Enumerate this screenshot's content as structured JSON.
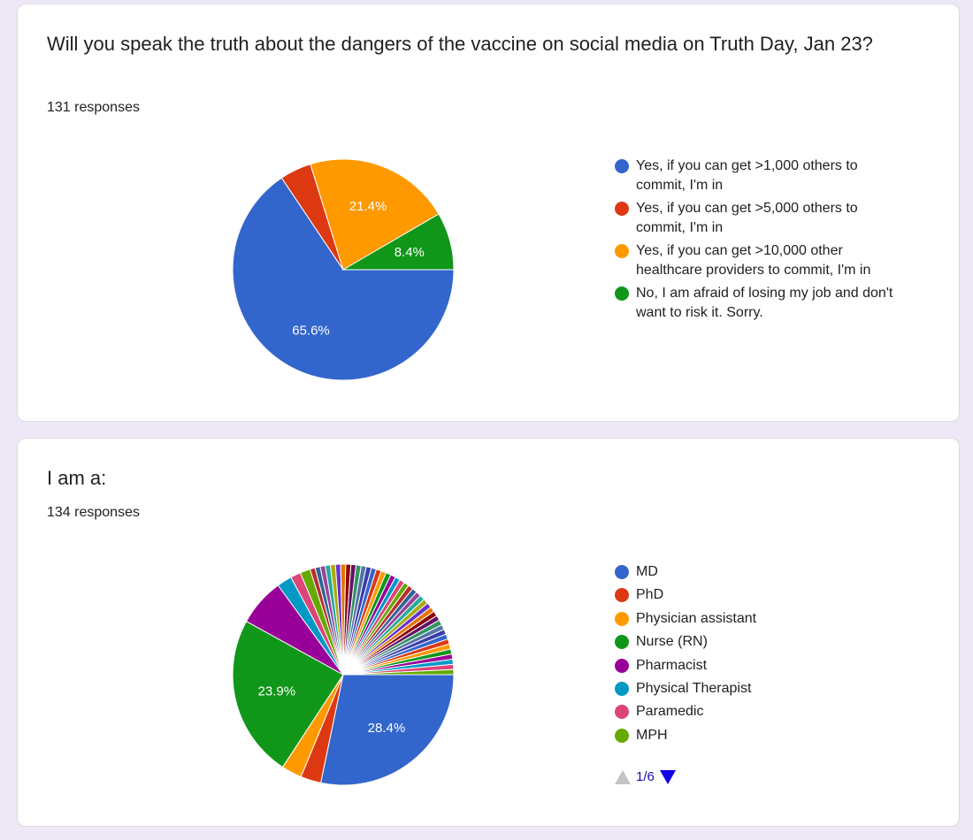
{
  "questions": [
    {
      "title": "Will you speak the truth about the dangers of the vaccine on social media on Truth Day, Jan 23?",
      "responses": "131 responses"
    },
    {
      "title": "I am a:",
      "responses": "134 responses",
      "pager": {
        "label": "1/6"
      }
    }
  ],
  "chart_data": [
    {
      "type": "pie",
      "categories": [
        "Yes, if you can get >1,000 others to commit, I'm in",
        "Yes, if you can get >5,000 others to commit, I'm in",
        "Yes, if you can get >10,000 other healthcare providers to commit, I'm in",
        "No, I am afraid of losing my job and don't want to risk it. Sorry."
      ],
      "values": [
        65.6,
        4.6,
        21.4,
        8.4
      ],
      "data_labels": [
        "65.6%",
        "",
        "21.4%",
        "8.4%"
      ],
      "colors": [
        "#3366cc",
        "#dc3912",
        "#ff9900",
        "#109618"
      ],
      "legend": "right"
    },
    {
      "type": "pie",
      "categories": [
        "MD",
        "PhD",
        "Physician assistant",
        "Nurse (RN)",
        "Pharmacist",
        "Physical Therapist",
        "Paramedic",
        "MPH"
      ],
      "values": [
        28.4,
        3.0,
        3.0,
        23.9,
        7.0,
        2.2,
        1.5,
        1.5
      ],
      "other_slice_count": 40,
      "other_slice_value": 0.75,
      "data_labels": [
        "28.4%",
        "",
        "",
        "23.9%",
        "",
        "",
        "",
        ""
      ],
      "colors": [
        "#3366cc",
        "#dc3912",
        "#ff9900",
        "#109618",
        "#990099",
        "#0099c6",
        "#dd4477",
        "#66aa00",
        "#b82e2e",
        "#316395",
        "#994499",
        "#22aa99",
        "#aaaa11",
        "#6633cc",
        "#e67300",
        "#8b0707",
        "#651067",
        "#329262",
        "#5574a6",
        "#3b3eac"
      ],
      "legend": "right"
    }
  ]
}
